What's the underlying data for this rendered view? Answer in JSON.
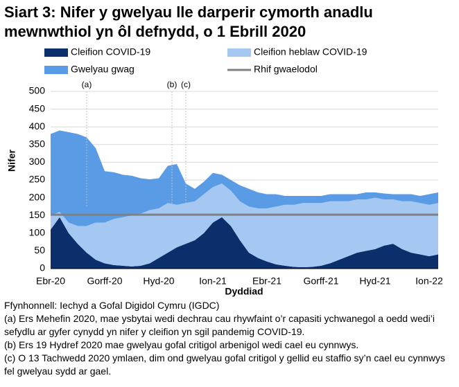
{
  "chart_data": {
    "type": "area",
    "title": "Siart 3: Nifer y gwelyau lle darperir cymorth anadlu mewnwthiol yn ôl defnydd, o 1 Ebrill 2020",
    "x_label": "Dyddiad",
    "y_label": "Nifer",
    "categories": [
      "Ebr-20",
      null,
      null,
      null,
      null,
      null,
      "Gorff-20",
      null,
      null,
      null,
      null,
      null,
      "Hyd-20",
      null,
      null,
      null,
      null,
      null,
      "Ion-21",
      null,
      null,
      null,
      null,
      null,
      "Ebr-21",
      null,
      null,
      null,
      null,
      null,
      "Gorff-21",
      null,
      null,
      null,
      null,
      null,
      "Hyd-21",
      null,
      null,
      null,
      null,
      null,
      "Ion-22",
      null
    ],
    "series": [
      {
        "name": "Cleifion COVID-19",
        "color": "#0b2f6b",
        "values": [
          110,
          145,
          100,
          70,
          45,
          25,
          15,
          10,
          8,
          6,
          8,
          15,
          30,
          45,
          60,
          70,
          80,
          100,
          130,
          145,
          120,
          80,
          45,
          30,
          20,
          12,
          8,
          5,
          4,
          5,
          8,
          15,
          25,
          35,
          45,
          50,
          55,
          65,
          70,
          55,
          45,
          40,
          35,
          40
        ]
      },
      {
        "name": "Cleifion heblaw COVID-19",
        "color": "#a5c8f2",
        "values": [
          40,
          15,
          30,
          50,
          75,
          105,
          115,
          130,
          137,
          144,
          147,
          150,
          140,
          140,
          120,
          115,
          110,
          110,
          100,
          95,
          100,
          110,
          130,
          140,
          150,
          163,
          172,
          175,
          181,
          180,
          177,
          175,
          165,
          155,
          150,
          145,
          145,
          130,
          125,
          135,
          145,
          145,
          145,
          145
        ]
      },
      {
        "name": "Gwelyau gwag",
        "color": "#5a9be6",
        "values": [
          230,
          230,
          255,
          260,
          250,
          210,
          145,
          132,
          120,
          112,
          100,
          87,
          85,
          105,
          115,
          55,
          35,
          35,
          40,
          25,
          30,
          45,
          50,
          45,
          40,
          35,
          25,
          25,
          20,
          20,
          20,
          20,
          20,
          20,
          15,
          20,
          15,
          17,
          15,
          20,
          20,
          20,
          30,
          30
        ]
      }
    ],
    "reference_line": {
      "name": "Rhif gwaelodol",
      "color": "#808080",
      "value": 152
    },
    "annotations": [
      "(a)",
      "(b)",
      "(c)"
    ],
    "ylim": [
      0,
      500
    ],
    "yticks": [
      0,
      50,
      100,
      150,
      200,
      250,
      300,
      350,
      400,
      450,
      500
    ],
    "grid": true,
    "notes": [
      "Ffynhonnell: Iechyd a Gofal Digidol Cymru (IGDC)",
      "(a) Ers Mehefin 2020, mae ysbytai wedi dechrau cau rhywfaint o’r capasiti ychwanegol a oedd wedi’i sefydlu ar gyfer cynydd yn nifer y cleifion yn sgil pandemig COVID-19.",
      "(b) Ers 19 Hydref 2020 mae gwelyau gofal critigol arbenigol wedi cael eu cynnwys.",
      "(c) O 13 Tachwedd 2020 ymlaen, dim ond gwelyau gofal critigol y gellid eu staffio sy’n cael eu cynnwys fel gwelyau sydd ar gael."
    ]
  }
}
